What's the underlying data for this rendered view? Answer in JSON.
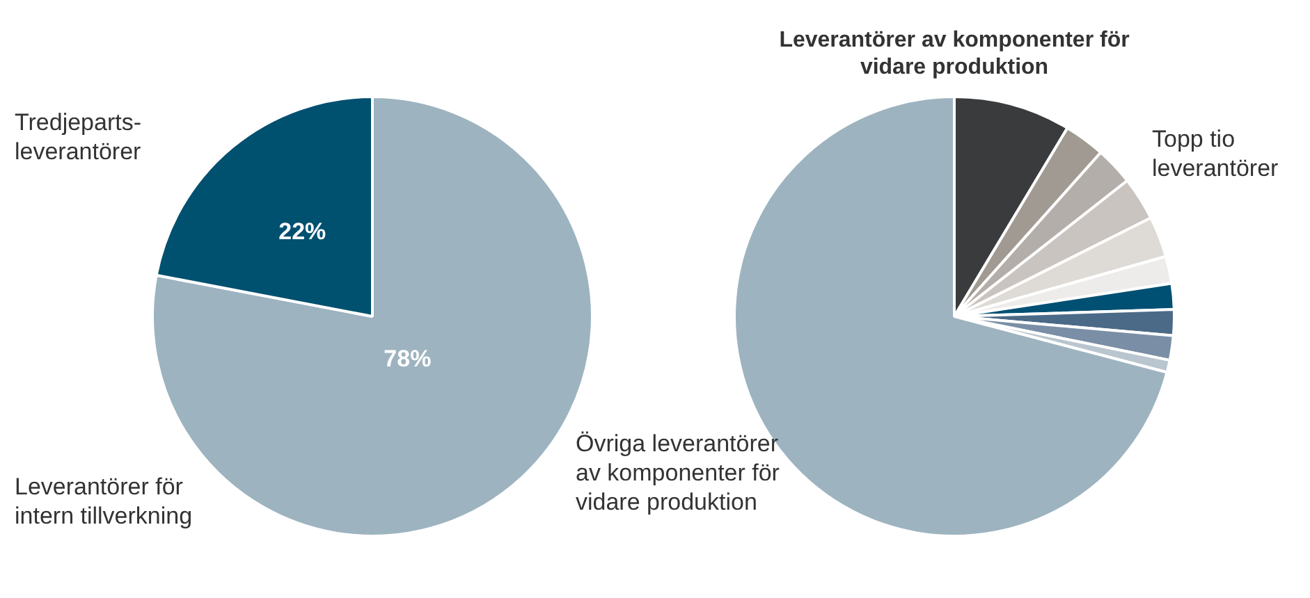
{
  "chart_data": [
    {
      "type": "pie",
      "categories": [
        "Leverantörer för\nintern tillverkning",
        "Tredjeparts-\nleverantörer"
      ],
      "values": [
        78,
        22
      ],
      "colors": [
        "#9db3c0",
        "#00506f"
      ],
      "data_labels": true,
      "value_labels": [
        "78%",
        "22%"
      ]
    },
    {
      "type": "pie",
      "title": "Leverantörer av komponenter för\nvidare produktion",
      "categories": [
        null,
        null,
        null,
        null,
        null,
        null,
        null,
        null,
        null,
        null,
        "Övriga leverantörer\nav komponenter för\nvidare produktion"
      ],
      "values": [
        8.6,
        3.0,
        2.8,
        3.2,
        3.0,
        2.0,
        1.9,
        1.9,
        1.8,
        0.9,
        70.9
      ],
      "colors": [
        "#3a3b3d",
        "#a09a92",
        "#b4aeaa",
        "#c9c4c0",
        "#dedad6",
        "#eeeceb",
        "#005073",
        "#4b6a88",
        "#7a8fa6",
        "#b9c5cf",
        "#9db3c0"
      ],
      "annotations": [
        "Topp tio\nleverantörer"
      ]
    }
  ]
}
